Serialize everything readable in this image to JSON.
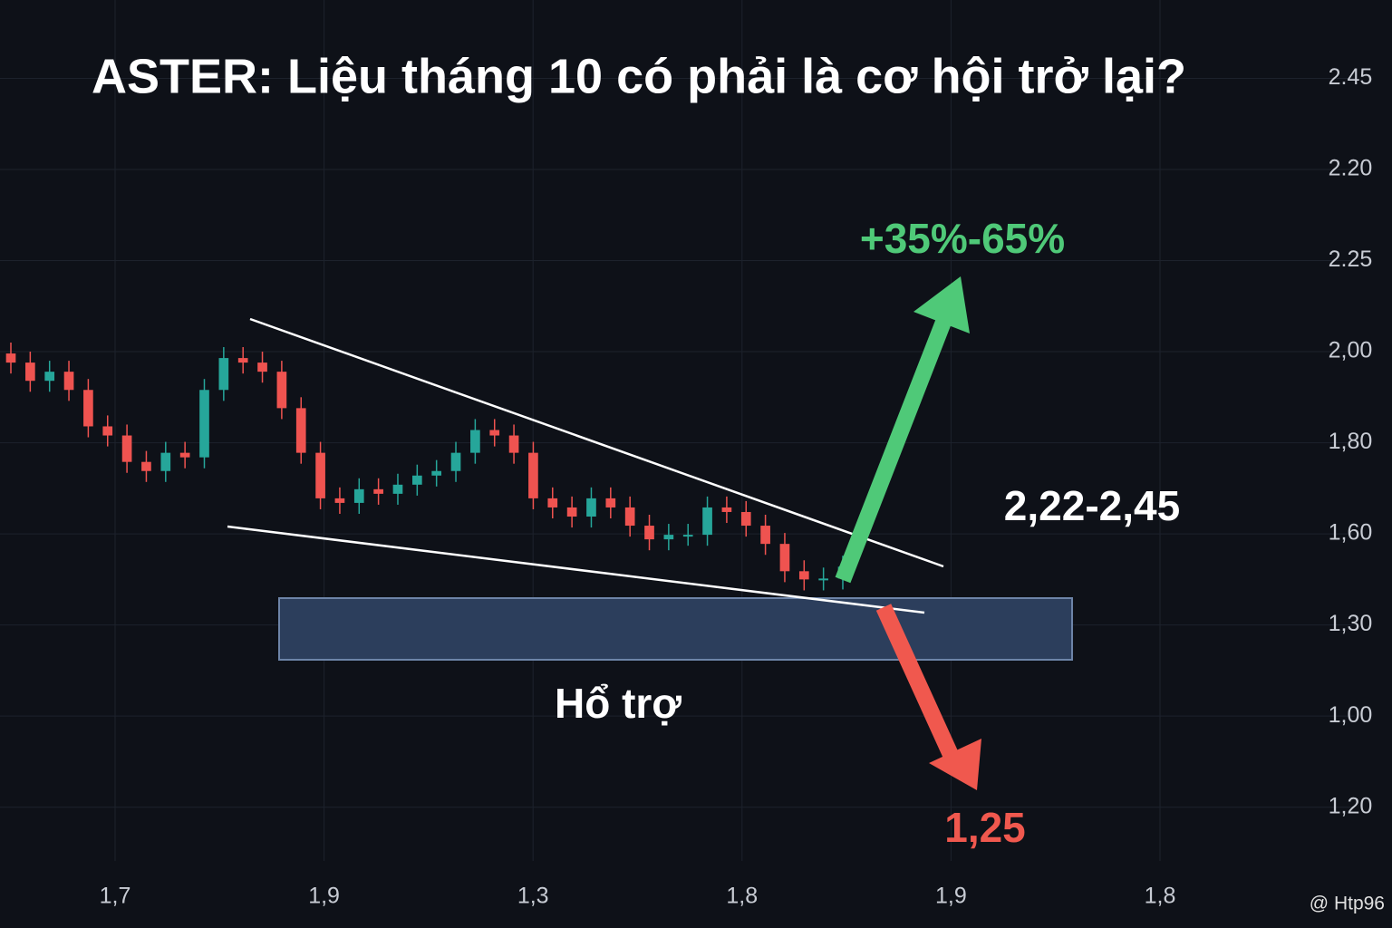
{
  "chart_data": {
    "type": "candlestick",
    "title": "ASTER: Liệu tháng 10 có phải là cơ hội trở lại?",
    "open": [
      4.98,
      4.88,
      4.68,
      4.78,
      4.58,
      4.18,
      4.08,
      3.79,
      3.69,
      3.89,
      3.84,
      4.58,
      4.93,
      4.88,
      4.78,
      4.38,
      3.89,
      3.39,
      3.34,
      3.49,
      3.44,
      3.54,
      3.64,
      3.69,
      3.89,
      4.14,
      4.08,
      3.89,
      3.39,
      3.29,
      3.19,
      3.39,
      3.29,
      3.09,
      2.94,
      2.99,
      2.99,
      3.29,
      3.24,
      3.09,
      2.89,
      2.59,
      2.5,
      2.51
    ],
    "high": [
      5.1,
      5.0,
      4.9,
      4.9,
      4.7,
      4.3,
      4.2,
      3.91,
      4.01,
      4.01,
      4.7,
      5.05,
      5.05,
      5.0,
      4.9,
      4.5,
      4.01,
      3.51,
      3.61,
      3.61,
      3.66,
      3.76,
      3.81,
      4.01,
      4.26,
      4.26,
      4.2,
      4.01,
      3.51,
      3.41,
      3.51,
      3.51,
      3.41,
      3.21,
      3.11,
      3.11,
      3.41,
      3.41,
      3.36,
      3.21,
      3.01,
      2.71,
      2.63,
      2.76
    ],
    "low": [
      4.76,
      4.56,
      4.56,
      4.46,
      4.06,
      3.96,
      3.67,
      3.57,
      3.57,
      3.72,
      3.72,
      4.46,
      4.76,
      4.66,
      4.26,
      3.77,
      3.27,
      3.22,
      3.22,
      3.32,
      3.32,
      3.42,
      3.52,
      3.57,
      3.77,
      3.96,
      3.77,
      3.27,
      3.17,
      3.07,
      3.07,
      3.17,
      2.97,
      2.82,
      2.82,
      2.87,
      2.87,
      3.12,
      2.97,
      2.77,
      2.47,
      2.38,
      2.38,
      2.39
    ],
    "close": [
      4.88,
      4.68,
      4.78,
      4.58,
      4.18,
      4.08,
      3.79,
      3.69,
      3.89,
      3.84,
      4.58,
      4.93,
      4.88,
      4.78,
      4.38,
      3.89,
      3.39,
      3.34,
      3.49,
      3.44,
      3.54,
      3.64,
      3.69,
      3.89,
      4.14,
      4.08,
      3.89,
      3.39,
      3.29,
      3.19,
      3.39,
      3.29,
      3.09,
      2.94,
      2.99,
      2.99,
      3.29,
      3.24,
      3.09,
      2.89,
      2.59,
      2.5,
      2.51,
      2.64
    ],
    "up_color": "#26a69a",
    "down_color": "#ef5350",
    "ylim": [
      -0.59,
      8.86
    ],
    "yticks": [
      {
        "value": 8,
        "label": "2.45"
      },
      {
        "value": 7,
        "label": "2.20"
      },
      {
        "value": 6,
        "label": "2.25"
      },
      {
        "value": 5,
        "label": "2,00"
      },
      {
        "value": 4,
        "label": "1,80"
      },
      {
        "value": 3,
        "label": "1,60"
      },
      {
        "value": 2,
        "label": "1,30"
      },
      {
        "value": 1,
        "label": "1,00"
      },
      {
        "value": 0,
        "label": "1,20"
      }
    ],
    "x_labels": [
      "1,7",
      "1,9",
      "1,3",
      "1,8",
      "1,9",
      "1,8"
    ],
    "grid": true,
    "annotations": {
      "up_target": "+35%-65%",
      "range": "2,22-2,45",
      "support": "Hổ trợ",
      "down_target": "1,25",
      "watermark": "@ Htp96"
    }
  }
}
